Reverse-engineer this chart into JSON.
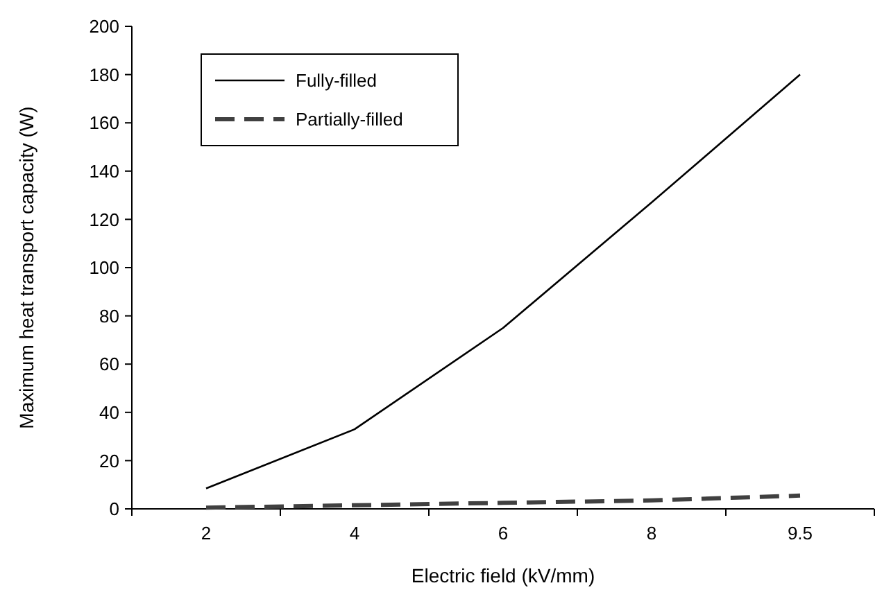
{
  "chart_data": {
    "type": "line",
    "xlabel": "Electric field (kV/mm)",
    "ylabel": "Maximum heat transport capacity (W)",
    "categories": [
      "2",
      "4",
      "6",
      "8",
      "9.5"
    ],
    "series": [
      {
        "name": "Fully-filled",
        "color": "#000000",
        "values": [
          8.5,
          33,
          75,
          127,
          180
        ],
        "line_style": "solid"
      },
      {
        "name": "Partially-filled",
        "color": "#404040",
        "values": [
          0.5,
          1.5,
          2.5,
          3.5,
          5.5
        ],
        "line_style": "dashed"
      }
    ],
    "ylim": [
      0,
      200
    ],
    "yticks": [
      0,
      20,
      40,
      60,
      80,
      100,
      120,
      140,
      160,
      180,
      200
    ],
    "grid": false,
    "legend": "top left",
    "marker": "none"
  }
}
